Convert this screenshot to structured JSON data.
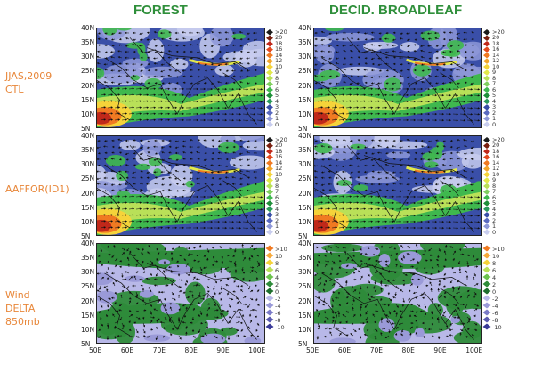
{
  "titles": {
    "forest": "FOREST",
    "decid": "DECID. BROADLEAF"
  },
  "row_labels": {
    "ctl": "JJAS,2009\nCTL",
    "aaffor": "AAFFOR(ID1)",
    "delta": "Wind\nDELTA\n850mb"
  },
  "lat_labels": [
    "40N",
    "35N",
    "30N",
    "25N",
    "20N",
    "15N",
    "10N",
    "5N"
  ],
  "lon_labels": [
    "50E",
    "60E",
    "70E",
    "80E",
    "90E",
    "100E"
  ],
  "legend_abs": [
    ">20",
    "20",
    "18",
    "16",
    "14",
    "12",
    "10",
    "9",
    "8",
    "7",
    "6",
    "5",
    "4",
    "3",
    "2",
    "1",
    "0"
  ],
  "legend_delta": [
    ">10",
    "10",
    "8",
    "6",
    "4",
    "2",
    "0",
    "-2",
    "-4",
    "-6",
    "-8",
    "-10"
  ],
  "colors": {
    "abs_ramp": [
      "#1b1b1b",
      "#7a2010",
      "#c0281a",
      "#e34a1f",
      "#f07a22",
      "#f3a52a",
      "#f5d33a",
      "#e2e84a",
      "#b9e058",
      "#7fcf5e",
      "#3fb84e",
      "#1f8f3a",
      "#2a9a5a",
      "#3a4fa8",
      "#5a6ac0",
      "#8e98d8",
      "#c8cdee"
    ],
    "delta_ramp": [
      "#f07a22",
      "#f7a93b",
      "#f5d33a",
      "#b9e058",
      "#6cc34e",
      "#2e8b3a",
      "#1f6f2e",
      "#b8b8e8",
      "#9a9ad8",
      "#7a7ac8",
      "#5a5ab0",
      "#3a3a98"
    ],
    "title_green": "#2f8f3b",
    "label_orange": "#e8873a"
  }
}
